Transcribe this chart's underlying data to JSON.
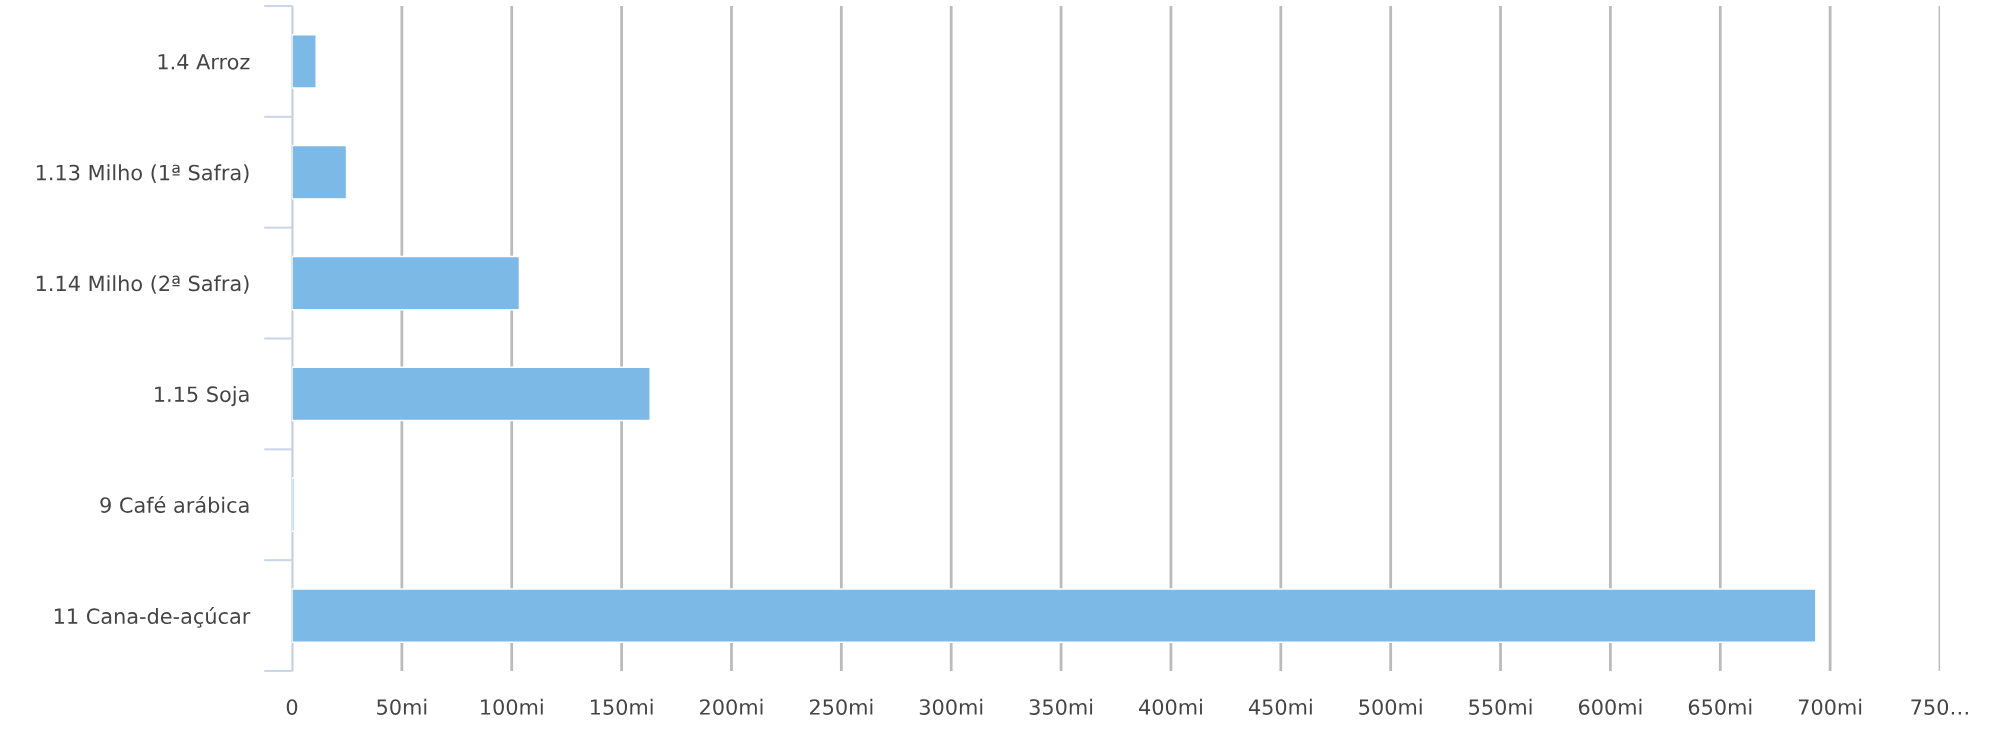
{
  "chart_data": {
    "type": "bar",
    "orientation": "horizontal",
    "categories": [
      "1.4 Arroz",
      "1.13 Milho (1ª Safra)",
      "1.14 Milho (2ª Safra)",
      "1.15 Soja",
      "9 Café arábica",
      "11 Cana-de-açúcar"
    ],
    "values": [
      11,
      24.8,
      103.5,
      163,
      1,
      693.5
    ],
    "color": "#7cb9e6",
    "xlim": [
      0,
      750
    ],
    "xticks": [
      0,
      {
        "value": 50,
        "label": "50mi"
      },
      {
        "value": 100,
        "label": "100mi"
      },
      {
        "value": 150,
        "label": "150mi"
      },
      {
        "value": 200,
        "label": "200mi"
      },
      {
        "value": 250,
        "label": "250mi"
      },
      {
        "value": 300,
        "label": "300mi"
      },
      {
        "value": 350,
        "label": "350mi"
      },
      {
        "value": 400,
        "label": "400mi"
      },
      {
        "value": 450,
        "label": "450mi"
      },
      {
        "value": 500,
        "label": "500mi"
      },
      {
        "value": 550,
        "label": "550mi"
      },
      {
        "value": 600,
        "label": "600mi"
      },
      {
        "value": 650,
        "label": "650mi"
      },
      {
        "value": 700,
        "label": "700mi"
      },
      {
        "value": 750,
        "label": "750…"
      }
    ],
    "grid": "x"
  }
}
